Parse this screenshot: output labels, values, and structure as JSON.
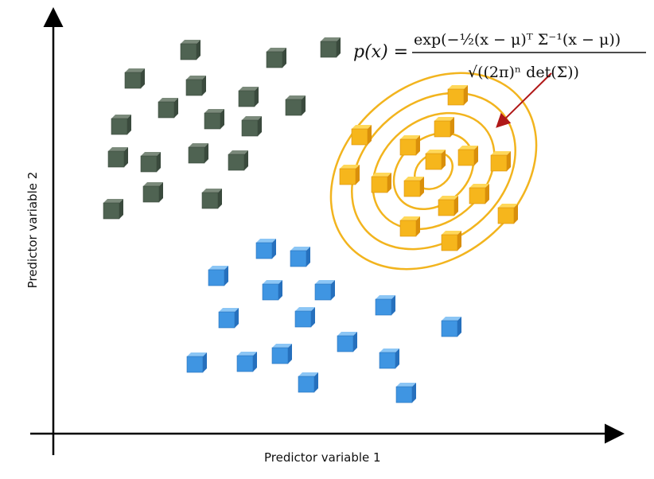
{
  "axes": {
    "x_label": "Predictor variable 1",
    "y_label": "Predictor variable 2"
  },
  "formula": {
    "lhs": "p(x) =",
    "numerator": "exp(−½(x − μ)ᵀ Σ⁻¹(x − μ))",
    "denominator": "√((2π)ⁿ det(Σ))"
  },
  "colors": {
    "cluster_green": "#4f6352",
    "cluster_yellow": "#f6b61c",
    "cluster_blue": "#3f95e2",
    "contour": "#f2b41e",
    "pointer_arrow": "#b01818",
    "axis": "#000000"
  },
  "clusters": [
    {
      "name": "green",
      "count": 24
    },
    {
      "name": "yellow",
      "count": 17
    },
    {
      "name": "blue",
      "count": 21
    }
  ]
}
